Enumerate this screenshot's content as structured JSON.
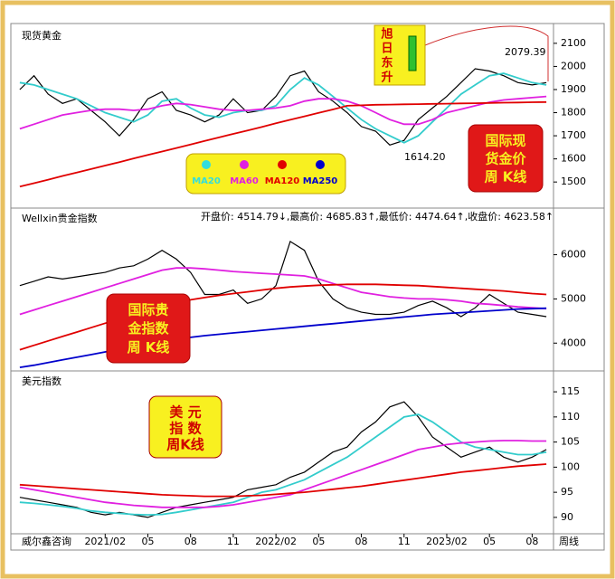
{
  "chart_data": [
    {
      "type": "line",
      "title": "现货黄金",
      "ylim": [
        1395,
        2170
      ],
      "yticks": [
        1500,
        1600,
        1700,
        1800,
        1900,
        2000,
        2100
      ],
      "series": [
        {
          "color": "#000000",
          "values": [
            1900,
            1960,
            1880,
            1840,
            1860,
            1810,
            1760,
            1700,
            1770,
            1860,
            1890,
            1810,
            1790,
            1760,
            1790,
            1860,
            1800,
            1810,
            1870,
            1960,
            1980,
            1890,
            1850,
            1800,
            1740,
            1720,
            1660,
            1680,
            1770,
            1820,
            1870,
            1930,
            1990,
            1980,
            1960,
            1930,
            1920,
            1930
          ]
        },
        {
          "color": "#33cccc",
          "values": [
            1930,
            1920,
            1900,
            1880,
            1860,
            1830,
            1800,
            1780,
            1760,
            1790,
            1850,
            1860,
            1820,
            1790,
            1780,
            1800,
            1810,
            1810,
            1830,
            1900,
            1950,
            1920,
            1870,
            1820,
            1770,
            1730,
            1700,
            1670,
            1700,
            1760,
            1820,
            1880,
            1920,
            1960,
            1970,
            1950,
            1930,
            1920
          ]
        },
        {
          "color": "#e020e0",
          "values": [
            1730,
            1750,
            1770,
            1790,
            1800,
            1810,
            1815,
            1815,
            1810,
            1815,
            1830,
            1840,
            1835,
            1825,
            1815,
            1810,
            1810,
            1815,
            1820,
            1830,
            1850,
            1860,
            1860,
            1850,
            1830,
            1800,
            1770,
            1750,
            1750,
            1770,
            1800,
            1815,
            1830,
            1845,
            1855,
            1860,
            1865,
            1870
          ]
        },
        {
          "color": "#e00000",
          "values": [
            1480,
            1495,
            1510,
            1526,
            1541,
            1556,
            1571,
            1586,
            1602,
            1617,
            1632,
            1647,
            1662,
            1678,
            1693,
            1708,
            1723,
            1738,
            1754,
            1769,
            1784,
            1799,
            1814,
            1830,
            1832,
            1834,
            1835,
            1836,
            1837,
            1838,
            1839,
            1840,
            1841,
            1842,
            1843,
            1844,
            1845,
            1846
          ]
        }
      ],
      "peak_label": "2079.39",
      "trough_label": "1614.20",
      "legend": [
        {
          "name": "MA20",
          "color": "#33dddd"
        },
        {
          "name": "MA60",
          "color": "#e020e0"
        },
        {
          "name": "MA120",
          "color": "#e00000"
        },
        {
          "name": "MA250",
          "color": "#0000cc"
        }
      ],
      "badge": [
        "国际现",
        "货金价",
        "周  K线"
      ],
      "motto": [
        "旭",
        "日",
        "东",
        "升"
      ]
    },
    {
      "type": "line",
      "title": "Wellxin贵金指数",
      "header": "开盘价: 4514.79↓,最高价: 4685.83↑,最低价: 4474.64↑,收盘价: 4623.58↑",
      "ylim": [
        3412,
        7014
      ],
      "yticks": [
        4000,
        5000,
        6000
      ],
      "series": [
        {
          "color": "#000000",
          "values": [
            5300,
            5400,
            5500,
            5450,
            5500,
            5550,
            5600,
            5700,
            5750,
            5900,
            6100,
            5900,
            5600,
            5100,
            5100,
            5200,
            4900,
            5000,
            5300,
            6300,
            6100,
            5400,
            5000,
            4800,
            4700,
            4650,
            4650,
            4700,
            4850,
            4950,
            4800,
            4600,
            4800,
            5100,
            4900,
            4700,
            4650,
            4600
          ]
        },
        {
          "color": "#e020e0",
          "values": [
            4650,
            4750,
            4850,
            4950,
            5050,
            5150,
            5250,
            5350,
            5450,
            5550,
            5650,
            5700,
            5700,
            5680,
            5650,
            5620,
            5600,
            5580,
            5560,
            5540,
            5520,
            5450,
            5350,
            5250,
            5150,
            5100,
            5050,
            5020,
            5000,
            5000,
            4980,
            4950,
            4900,
            4880,
            4850,
            4820,
            4800,
            4780
          ]
        },
        {
          "color": "#e00000",
          "values": [
            3850,
            3950,
            4050,
            4150,
            4250,
            4350,
            4450,
            4550,
            4650,
            4750,
            4850,
            4920,
            4980,
            5030,
            5080,
            5120,
            5160,
            5200,
            5240,
            5270,
            5290,
            5310,
            5320,
            5330,
            5330,
            5330,
            5320,
            5310,
            5300,
            5280,
            5260,
            5240,
            5220,
            5200,
            5180,
            5150,
            5120,
            5100
          ]
        },
        {
          "color": "#0000cc",
          "values": [
            3450,
            3500,
            3560,
            3620,
            3680,
            3740,
            3800,
            3860,
            3920,
            3980,
            4040,
            4090,
            4130,
            4170,
            4200,
            4230,
            4260,
            4290,
            4320,
            4350,
            4380,
            4410,
            4440,
            4470,
            4500,
            4530,
            4560,
            4590,
            4620,
            4650,
            4670,
            4690,
            4710,
            4730,
            4750,
            4770,
            4780,
            4790
          ]
        }
      ],
      "badge": [
        "国际贵",
        "金指数",
        "周  K线"
      ]
    },
    {
      "type": "line",
      "title": "美元指数",
      "ylim": [
        87.1,
        118.8
      ],
      "yticks": [
        90,
        95,
        100,
        105,
        110,
        115
      ],
      "categories": [
        null,
        null,
        null,
        null,
        null,
        null,
        "2021/02",
        null,
        null,
        "05",
        null,
        null,
        "08",
        null,
        null,
        "11",
        null,
        null,
        "2022/02",
        null,
        null,
        "05",
        null,
        null,
        "08",
        null,
        null,
        "11",
        null,
        null,
        "2023/02",
        null,
        null,
        "05",
        null,
        null,
        "08",
        null
      ],
      "series": [
        {
          "color": "#000000",
          "values": [
            94,
            93.5,
            93,
            92.5,
            92,
            91,
            90.5,
            91,
            90.5,
            90,
            91,
            92,
            92.5,
            93,
            93.5,
            94,
            95.5,
            96,
            96.5,
            98,
            99,
            101,
            103,
            104,
            107,
            109,
            112,
            113,
            110,
            106,
            104,
            102,
            103,
            104,
            102,
            101,
            102,
            103.5
          ]
        },
        {
          "color": "#33cccc",
          "values": [
            93,
            92.8,
            92.5,
            92.2,
            91.8,
            91.3,
            91,
            90.8,
            90.6,
            90.5,
            90.6,
            91,
            91.5,
            92,
            92.5,
            93,
            94,
            95,
            95.5,
            96.5,
            97.5,
            99,
            100.5,
            102,
            104,
            106,
            108,
            110,
            110.5,
            109,
            107,
            105,
            104,
            103.5,
            103,
            102.5,
            102.5,
            103
          ]
        },
        {
          "color": "#e020e0",
          "values": [
            96,
            95.5,
            95,
            94.5,
            94,
            93.5,
            93,
            92.7,
            92.4,
            92.2,
            92,
            92,
            92,
            92,
            92.2,
            92.5,
            93,
            93.5,
            94,
            94.5,
            95.5,
            96.5,
            97.5,
            98.5,
            99.5,
            100.5,
            101.5,
            102.5,
            103.5,
            104,
            104.5,
            104.8,
            105,
            105.2,
            105.3,
            105.3,
            105.2,
            105.2
          ]
        },
        {
          "color": "#e00000",
          "values": [
            96.5,
            96.3,
            96.1,
            95.9,
            95.7,
            95.5,
            95.3,
            95.1,
            94.9,
            94.7,
            94.5,
            94.4,
            94.3,
            94.2,
            94.2,
            94.2,
            94.3,
            94.4,
            94.6,
            94.8,
            95,
            95.3,
            95.6,
            95.9,
            96.2,
            96.6,
            97,
            97.4,
            97.8,
            98.2,
            98.6,
            99,
            99.3,
            99.6,
            99.9,
            100.2,
            100.4,
            100.6
          ]
        }
      ],
      "badge": [
        "美  元",
        "指  数",
        "周K线"
      ],
      "footer_left": "威尔鑫咨询",
      "footer_right": "周线"
    }
  ]
}
